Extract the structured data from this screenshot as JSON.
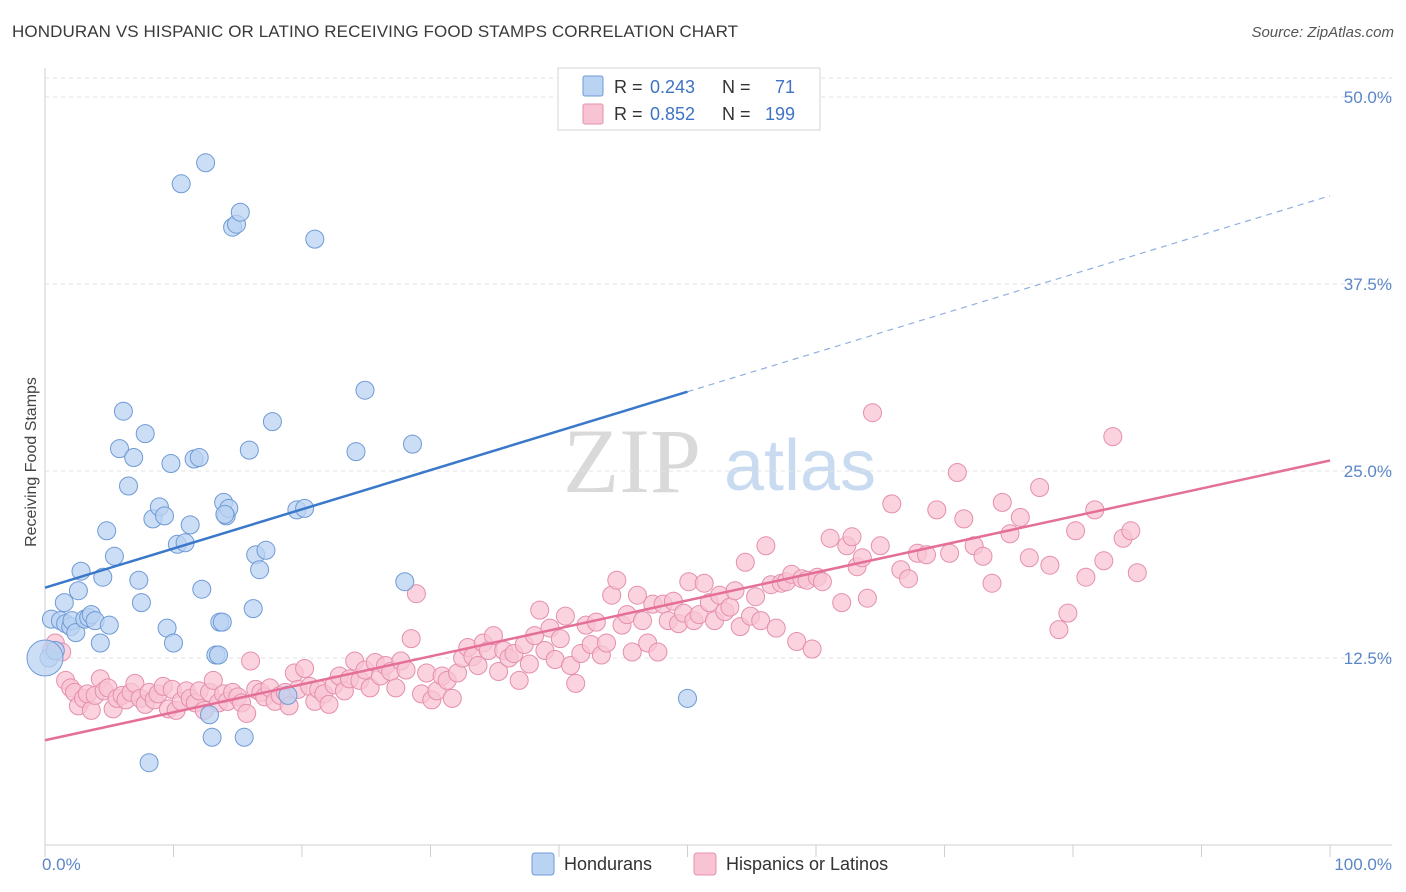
{
  "title": "HONDURAN VS HISPANIC OR LATINO RECEIVING FOOD STAMPS CORRELATION CHART",
  "source": "Source: ZipAtlas.com",
  "watermark": {
    "zip": "ZIP",
    "atlas": "atlas"
  },
  "colors": {
    "blue": "#3a78c9",
    "blue_fill": "#b9d3f2",
    "pink": "#e46f97",
    "pink_fill": "#f8c4d4"
  },
  "chart_data": {
    "type": "scatter",
    "title": "HONDURAN VS HISPANIC OR LATINO RECEIVING FOOD STAMPS CORRELATION CHART",
    "xlabel": "",
    "ylabel": "Receiving Food Stamps",
    "xlim": [
      0,
      100
    ],
    "ylim": [
      0,
      50
    ],
    "x_ticks": [
      "0.0%",
      "100.0%"
    ],
    "y_ticks": [
      {
        "v": 12.5,
        "label": "12.5%"
      },
      {
        "v": 25.0,
        "label": "25.0%"
      },
      {
        "v": 37.5,
        "label": "37.5%"
      },
      {
        "v": 50.0,
        "label": "50.0%"
      }
    ],
    "grid": true,
    "legend_position": "top-center",
    "legend": [
      {
        "r_label": "R = ",
        "r": "0.243",
        "n_label": "N = ",
        "n": "71"
      },
      {
        "r_label": "R = ",
        "r": "0.852",
        "n_label": "N = ",
        "n": "199"
      }
    ],
    "series": [
      {
        "name": "Hondurans",
        "trend": {
          "x0": 0,
          "y0": 17.2,
          "x1": 50,
          "y1": 30.3,
          "x_dash_end": 100,
          "y_dash_end": 43.4
        },
        "points": [
          [
            0.3,
            12.5
          ],
          [
            0.5,
            15.1
          ],
          [
            0.8,
            13.0
          ],
          [
            1.2,
            15.0
          ],
          [
            1.5,
            16.2
          ],
          [
            1.6,
            14.8
          ],
          [
            2.0,
            14.6
          ],
          [
            2.1,
            15.0
          ],
          [
            2.4,
            14.2
          ],
          [
            2.6,
            17.0
          ],
          [
            2.8,
            18.3
          ],
          [
            3.1,
            15.1
          ],
          [
            3.4,
            15.2
          ],
          [
            3.6,
            15.4
          ],
          [
            3.9,
            15.0
          ],
          [
            4.3,
            13.5
          ],
          [
            4.5,
            17.9
          ],
          [
            4.8,
            21.0
          ],
          [
            5.0,
            14.7
          ],
          [
            5.4,
            19.3
          ],
          [
            5.8,
            26.5
          ],
          [
            6.1,
            29.0
          ],
          [
            6.5,
            24.0
          ],
          [
            6.9,
            25.9
          ],
          [
            7.3,
            17.7
          ],
          [
            7.5,
            16.2
          ],
          [
            7.8,
            27.5
          ],
          [
            8.1,
            5.5
          ],
          [
            8.4,
            21.8
          ],
          [
            8.9,
            22.6
          ],
          [
            9.3,
            22.0
          ],
          [
            9.5,
            14.5
          ],
          [
            9.8,
            25.5
          ],
          [
            10.0,
            13.5
          ],
          [
            10.3,
            20.1
          ],
          [
            10.6,
            44.2
          ],
          [
            10.9,
            20.2
          ],
          [
            11.3,
            21.4
          ],
          [
            11.6,
            25.8
          ],
          [
            12.0,
            25.9
          ],
          [
            12.2,
            17.1
          ],
          [
            12.5,
            45.6
          ],
          [
            12.8,
            8.7
          ],
          [
            13.0,
            7.2
          ],
          [
            13.3,
            12.7
          ],
          [
            13.6,
            14.9
          ],
          [
            13.9,
            22.9
          ],
          [
            14.1,
            22.0
          ],
          [
            14.3,
            22.5
          ],
          [
            14.6,
            41.3
          ],
          [
            14.9,
            41.5
          ],
          [
            15.2,
            42.3
          ],
          [
            15.5,
            7.2
          ],
          [
            15.9,
            26.4
          ],
          [
            16.2,
            15.8
          ],
          [
            16.4,
            19.4
          ],
          [
            16.7,
            18.4
          ],
          [
            17.2,
            19.7
          ],
          [
            17.7,
            28.3
          ],
          [
            18.9,
            10.0
          ],
          [
            19.6,
            22.4
          ],
          [
            20.2,
            22.5
          ],
          [
            21.0,
            40.5
          ],
          [
            24.2,
            26.3
          ],
          [
            24.9,
            30.4
          ],
          [
            28.0,
            17.6
          ],
          [
            28.6,
            26.8
          ],
          [
            50.0,
            9.8
          ],
          [
            13.5,
            12.7
          ],
          [
            13.8,
            14.9
          ],
          [
            14.0,
            22.1
          ]
        ]
      },
      {
        "name": "Hispanics or Latinos",
        "trend": {
          "x0": 0,
          "y0": 7.0,
          "x1": 100,
          "y1": 25.7
        },
        "points": [
          [
            0.5,
            13.0
          ],
          [
            0.8,
            13.5
          ],
          [
            1.3,
            12.9
          ],
          [
            1.6,
            11.0
          ],
          [
            2.0,
            10.5
          ],
          [
            2.3,
            10.2
          ],
          [
            2.6,
            9.3
          ],
          [
            3.0,
            9.8
          ],
          [
            3.3,
            10.1
          ],
          [
            3.6,
            9.0
          ],
          [
            3.9,
            10.0
          ],
          [
            4.3,
            11.1
          ],
          [
            4.6,
            10.3
          ],
          [
            4.9,
            10.5
          ],
          [
            5.3,
            9.1
          ],
          [
            5.6,
            9.8
          ],
          [
            6.0,
            10.0
          ],
          [
            6.3,
            9.7
          ],
          [
            6.7,
            10.2
          ],
          [
            7.0,
            10.8
          ],
          [
            7.4,
            9.8
          ],
          [
            7.8,
            9.4
          ],
          [
            8.1,
            10.2
          ],
          [
            8.5,
            9.7
          ],
          [
            8.8,
            10.1
          ],
          [
            9.2,
            10.6
          ],
          [
            9.6,
            9.1
          ],
          [
            9.9,
            10.4
          ],
          [
            10.2,
            9.0
          ],
          [
            10.6,
            9.6
          ],
          [
            11.0,
            10.3
          ],
          [
            11.3,
            9.8
          ],
          [
            11.7,
            9.5
          ],
          [
            12.0,
            10.3
          ],
          [
            12.4,
            9.0
          ],
          [
            12.8,
            10.2
          ],
          [
            13.1,
            11.0
          ],
          [
            13.5,
            9.5
          ],
          [
            13.9,
            10.1
          ],
          [
            14.2,
            9.6
          ],
          [
            14.6,
            10.2
          ],
          [
            15.0,
            9.9
          ],
          [
            15.3,
            9.5
          ],
          [
            15.7,
            8.8
          ],
          [
            16.0,
            12.3
          ],
          [
            16.4,
            10.4
          ],
          [
            16.8,
            10.2
          ],
          [
            17.1,
            9.9
          ],
          [
            17.5,
            10.5
          ],
          [
            17.9,
            9.6
          ],
          [
            18.3,
            10.0
          ],
          [
            18.7,
            10.2
          ],
          [
            19.0,
            9.3
          ],
          [
            19.4,
            11.5
          ],
          [
            19.7,
            10.4
          ],
          [
            20.2,
            11.8
          ],
          [
            20.6,
            10.6
          ],
          [
            21.0,
            9.6
          ],
          [
            21.3,
            10.4
          ],
          [
            21.7,
            10.1
          ],
          [
            22.1,
            9.4
          ],
          [
            22.5,
            10.7
          ],
          [
            22.9,
            11.3
          ],
          [
            23.3,
            10.3
          ],
          [
            23.7,
            11.1
          ],
          [
            24.1,
            12.3
          ],
          [
            24.5,
            11.0
          ],
          [
            24.9,
            11.7
          ],
          [
            25.3,
            10.5
          ],
          [
            25.7,
            12.2
          ],
          [
            26.1,
            11.3
          ],
          [
            26.5,
            12.0
          ],
          [
            26.9,
            11.6
          ],
          [
            27.3,
            10.5
          ],
          [
            27.7,
            12.3
          ],
          [
            28.1,
            11.7
          ],
          [
            28.5,
            13.8
          ],
          [
            28.9,
            16.8
          ],
          [
            29.3,
            10.1
          ],
          [
            29.7,
            11.5
          ],
          [
            30.1,
            9.7
          ],
          [
            30.5,
            10.3
          ],
          [
            30.9,
            11.3
          ],
          [
            31.3,
            11.0
          ],
          [
            31.7,
            9.8
          ],
          [
            32.1,
            11.5
          ],
          [
            32.5,
            12.5
          ],
          [
            32.9,
            13.2
          ],
          [
            33.3,
            12.6
          ],
          [
            33.7,
            12.0
          ],
          [
            34.1,
            13.5
          ],
          [
            34.5,
            13.0
          ],
          [
            34.9,
            14.0
          ],
          [
            35.3,
            11.6
          ],
          [
            35.7,
            13.0
          ],
          [
            36.1,
            12.5
          ],
          [
            36.5,
            12.8
          ],
          [
            36.9,
            11.0
          ],
          [
            37.3,
            13.4
          ],
          [
            37.7,
            12.1
          ],
          [
            38.1,
            14.0
          ],
          [
            38.5,
            15.7
          ],
          [
            38.9,
            13.0
          ],
          [
            39.3,
            14.5
          ],
          [
            39.7,
            12.4
          ],
          [
            40.1,
            13.8
          ],
          [
            40.5,
            15.3
          ],
          [
            40.9,
            12.0
          ],
          [
            41.3,
            10.8
          ],
          [
            41.7,
            12.8
          ],
          [
            42.1,
            14.7
          ],
          [
            42.5,
            13.4
          ],
          [
            42.9,
            14.9
          ],
          [
            43.3,
            12.7
          ],
          [
            43.7,
            13.5
          ],
          [
            44.1,
            16.7
          ],
          [
            44.5,
            17.7
          ],
          [
            44.9,
            14.7
          ],
          [
            45.3,
            15.4
          ],
          [
            45.7,
            12.9
          ],
          [
            46.1,
            16.7
          ],
          [
            46.5,
            15.0
          ],
          [
            46.9,
            13.5
          ],
          [
            47.3,
            16.1
          ],
          [
            47.7,
            12.9
          ],
          [
            48.1,
            16.1
          ],
          [
            48.5,
            15.0
          ],
          [
            48.9,
            16.3
          ],
          [
            49.3,
            14.8
          ],
          [
            49.7,
            15.5
          ],
          [
            50.1,
            17.6
          ],
          [
            50.5,
            15.0
          ],
          [
            50.9,
            15.4
          ],
          [
            51.3,
            17.5
          ],
          [
            51.7,
            16.2
          ],
          [
            52.1,
            15.0
          ],
          [
            52.5,
            16.7
          ],
          [
            52.9,
            15.6
          ],
          [
            53.3,
            15.9
          ],
          [
            53.7,
            17.0
          ],
          [
            54.1,
            14.6
          ],
          [
            54.5,
            18.9
          ],
          [
            54.9,
            15.3
          ],
          [
            55.3,
            16.6
          ],
          [
            55.7,
            15.0
          ],
          [
            56.1,
            20.0
          ],
          [
            56.5,
            17.4
          ],
          [
            56.9,
            14.5
          ],
          [
            57.3,
            17.5
          ],
          [
            57.7,
            17.6
          ],
          [
            58.1,
            18.1
          ],
          [
            58.5,
            13.6
          ],
          [
            58.9,
            17.8
          ],
          [
            59.3,
            17.7
          ],
          [
            59.7,
            13.1
          ],
          [
            60.1,
            17.9
          ],
          [
            60.5,
            17.6
          ],
          [
            61.1,
            20.5
          ],
          [
            62.0,
            16.2
          ],
          [
            62.4,
            20.0
          ],
          [
            62.8,
            20.6
          ],
          [
            63.2,
            18.6
          ],
          [
            63.6,
            19.2
          ],
          [
            64.0,
            16.5
          ],
          [
            64.4,
            28.9
          ],
          [
            65.0,
            20.0
          ],
          [
            65.9,
            22.8
          ],
          [
            66.6,
            18.4
          ],
          [
            67.2,
            17.8
          ],
          [
            67.9,
            19.5
          ],
          [
            68.6,
            19.4
          ],
          [
            69.4,
            22.4
          ],
          [
            70.4,
            19.5
          ],
          [
            71.0,
            24.9
          ],
          [
            71.5,
            21.8
          ],
          [
            72.3,
            20.0
          ],
          [
            73.0,
            19.3
          ],
          [
            73.7,
            17.5
          ],
          [
            74.5,
            22.9
          ],
          [
            75.1,
            20.8
          ],
          [
            75.9,
            21.9
          ],
          [
            76.6,
            19.2
          ],
          [
            77.4,
            23.9
          ],
          [
            78.2,
            18.7
          ],
          [
            78.9,
            14.4
          ],
          [
            79.6,
            15.5
          ],
          [
            80.2,
            21.0
          ],
          [
            81.0,
            17.9
          ],
          [
            81.7,
            22.4
          ],
          [
            82.4,
            19.0
          ],
          [
            83.1,
            27.3
          ],
          [
            83.9,
            20.5
          ],
          [
            84.5,
            21.0
          ],
          [
            85.0,
            18.2
          ]
        ]
      }
    ]
  },
  "bottom_legend": [
    "Hondurans",
    "Hispanics or Latinos"
  ]
}
